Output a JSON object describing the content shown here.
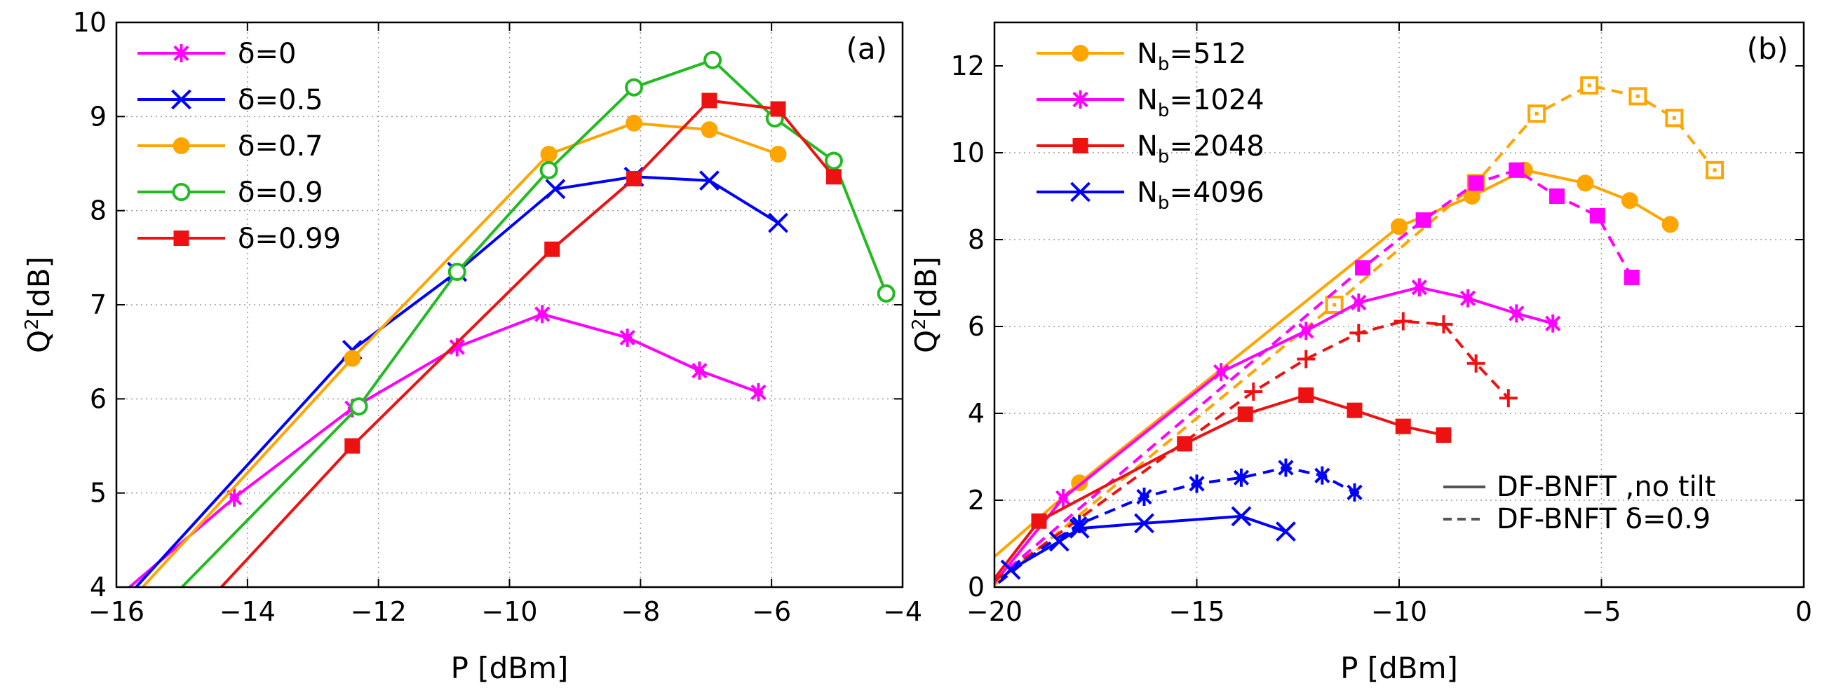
{
  "chart_data": [
    {
      "type": "line",
      "panel": "(a)",
      "xlabel": "P [dBm]",
      "ylabel": "Q2[dB]",
      "ylabel_main": "Q",
      "ylabel_sup": "2",
      "ylabel_rest": "[dB]",
      "xlim": [
        -16,
        -4
      ],
      "ylim": [
        4,
        10
      ],
      "xticks": [
        -16,
        -14,
        -12,
        -10,
        -8,
        -6,
        -4
      ],
      "yticks": [
        4,
        5,
        6,
        7,
        8,
        9,
        10
      ],
      "xtick_labels": [
        "−16",
        "−14",
        "−12",
        "−10",
        "−8",
        "−6",
        "−4"
      ],
      "ytick_labels": [
        "4",
        "5",
        "6",
        "7",
        "8",
        "9",
        "10"
      ],
      "grid": true,
      "legend_position": "top-left",
      "series": [
        {
          "name": "δ=0",
          "color": "#ff00ff",
          "marker": "star",
          "dash": "solid",
          "x": [
            -15.8,
            -14.2,
            -12.4,
            -10.8,
            -9.5,
            -8.2,
            -7.1,
            -6.2
          ],
          "y": [
            4.0,
            4.95,
            5.9,
            6.55,
            6.9,
            6.65,
            6.3,
            6.07
          ],
          "marker_from": 1
        },
        {
          "name": "δ=0.5",
          "color": "#0000ff",
          "marker": "x",
          "dash": "solid",
          "x": [
            -15.7,
            -12.4,
            -10.8,
            -9.3,
            -8.1,
            -6.95,
            -5.9
          ],
          "y": [
            4.0,
            6.52,
            7.35,
            8.23,
            8.36,
            8.32,
            7.87
          ],
          "marker_from": 1
        },
        {
          "name": "δ=0.7",
          "color": "#ffa500",
          "marker": "circle-filled",
          "dash": "solid",
          "x": [
            -15.6,
            -12.4,
            -9.4,
            -8.1,
            -6.95,
            -5.9
          ],
          "y": [
            4.0,
            6.43,
            8.6,
            8.93,
            8.86,
            8.6
          ],
          "marker_from": 1
        },
        {
          "name": "δ=0.9",
          "color": "#22bb22",
          "marker": "circle-open",
          "dash": "solid",
          "x": [
            -15.0,
            -12.3,
            -10.8,
            -9.4,
            -8.1,
            -6.9,
            -5.95,
            -5.05,
            -4.25
          ],
          "y": [
            4.0,
            5.92,
            7.35,
            8.43,
            9.31,
            9.6,
            8.98,
            8.53,
            7.12
          ],
          "marker_from": 1
        },
        {
          "name": "δ=0.99",
          "color": "#ee1111",
          "marker": "square-filled",
          "dash": "solid",
          "x": [
            -14.4,
            -12.4,
            -9.35,
            -8.1,
            -6.95,
            -5.9,
            -5.05
          ],
          "y": [
            4.0,
            5.5,
            7.59,
            8.34,
            9.17,
            9.08,
            8.36
          ],
          "marker_from": 1
        }
      ]
    },
    {
      "type": "line",
      "panel": "(b)",
      "xlabel": "P [dBm]",
      "ylabel": "Q2[dB]",
      "ylabel_main": "Q",
      "ylabel_sup": "2",
      "ylabel_rest": "[dB]",
      "xlim": [
        -20,
        0
      ],
      "ylim": [
        0,
        13
      ],
      "xticks": [
        -20,
        -15,
        -10,
        -5,
        0
      ],
      "yticks": [
        0,
        2,
        4,
        6,
        8,
        10,
        12
      ],
      "xtick_labels": [
        "−20",
        "−15",
        "−10",
        "−5",
        "0"
      ],
      "ytick_labels": [
        "0",
        "2",
        "4",
        "6",
        "8",
        "10",
        "12"
      ],
      "grid": true,
      "legend_position": "top-left",
      "legend_entries": [
        {
          "main": "N",
          "sub": "b",
          "rest": "=512",
          "color": "#ffa500",
          "marker": "circle-filled"
        },
        {
          "main": "N",
          "sub": "b",
          "rest": "=1024",
          "color": "#ff00ff",
          "marker": "star"
        },
        {
          "main": "N",
          "sub": "b",
          "rest": "=2048",
          "color": "#ee1111",
          "marker": "square-filled"
        },
        {
          "main": "N",
          "sub": "b",
          "rest": "=4096",
          "color": "#0000ff",
          "marker": "x"
        }
      ],
      "style_legend": [
        {
          "label": "DF-BNFT ,no tilt",
          "dash": "solid"
        },
        {
          "label": "DF-BNFT δ=0.9",
          "dash": "dashed"
        }
      ],
      "series": [
        {
          "name": "Nb=512, no tilt",
          "color": "#ffa500",
          "marker": "circle-filled",
          "dash": "solid",
          "x": [
            -20.0,
            -17.9,
            -10.0,
            -8.2,
            -6.9,
            -5.4,
            -4.3,
            -3.3
          ],
          "y": [
            0.7,
            2.4,
            8.3,
            9.0,
            9.6,
            9.3,
            8.9,
            8.35
          ],
          "marker_from": 1
        },
        {
          "name": "Nb=512, δ=0.9",
          "color": "#ffa500",
          "marker": "square-open",
          "dash": "dashed",
          "x": [
            -20.0,
            -11.6,
            -8.1,
            -6.6,
            -5.3,
            -4.1,
            -3.2,
            -2.2
          ],
          "y": [
            0.05,
            6.5,
            9.3,
            10.9,
            11.55,
            11.3,
            10.8,
            9.6
          ],
          "marker_from": 1
        },
        {
          "name": "Nb=1024, no tilt",
          "color": "#ff00ff",
          "marker": "star",
          "dash": "solid",
          "x": [
            -20.0,
            -18.3,
            -14.4,
            -12.3,
            -11.0,
            -9.5,
            -8.3,
            -7.1,
            -6.2
          ],
          "y": [
            0.1,
            2.05,
            4.95,
            5.9,
            6.55,
            6.9,
            6.65,
            6.3,
            6.07
          ],
          "marker_from": 1
        },
        {
          "name": "Nb=1024, δ=0.9",
          "color": "#ff00ff",
          "marker": "square-filled",
          "dash": "dashed",
          "x": [
            -20.0,
            -10.9,
            -9.4,
            -8.1,
            -7.1,
            -6.1,
            -5.1,
            -4.25
          ],
          "y": [
            0.15,
            7.35,
            8.45,
            9.3,
            9.6,
            9.0,
            8.55,
            7.13
          ],
          "marker_from": 1
        },
        {
          "name": "Nb=2048, no tilt",
          "color": "#ee1111",
          "marker": "square-filled",
          "dash": "solid",
          "x": [
            -20.0,
            -18.9,
            -15.3,
            -13.8,
            -12.3,
            -11.1,
            -9.9,
            -8.9
          ],
          "y": [
            0.2,
            1.52,
            3.3,
            3.98,
            4.42,
            4.07,
            3.7,
            3.5
          ],
          "marker_from": 1
        },
        {
          "name": "Nb=2048, δ=0.9",
          "color": "#ee1111",
          "marker": "plus",
          "dash": "dashed",
          "x": [
            -20.0,
            -13.6,
            -12.3,
            -11.0,
            -9.9,
            -8.9,
            -8.1,
            -7.3
          ],
          "y": [
            0.15,
            4.5,
            5.25,
            5.85,
            6.12,
            6.05,
            5.15,
            4.35
          ],
          "marker_from": 1
        },
        {
          "name": "Nb=4096, no tilt",
          "color": "#0000ff",
          "marker": "x",
          "dash": "solid",
          "x": [
            -19.6,
            -18.4,
            -17.9,
            -16.3,
            -13.9,
            -12.8
          ],
          "y": [
            0.4,
            1.05,
            1.35,
            1.47,
            1.63,
            1.28
          ],
          "marker_from": 0
        },
        {
          "name": "Nb=4096, δ=0.9",
          "color": "#0000ff",
          "marker": "star",
          "dash": "dashed",
          "x": [
            -19.9,
            -18.9,
            -17.9,
            -16.3,
            -15.0,
            -13.9,
            -12.8,
            -11.9,
            -11.1
          ],
          "y": [
            0.1,
            0.85,
            1.45,
            2.08,
            2.38,
            2.52,
            2.75,
            2.57,
            2.18
          ],
          "marker_from": 2
        }
      ]
    }
  ]
}
